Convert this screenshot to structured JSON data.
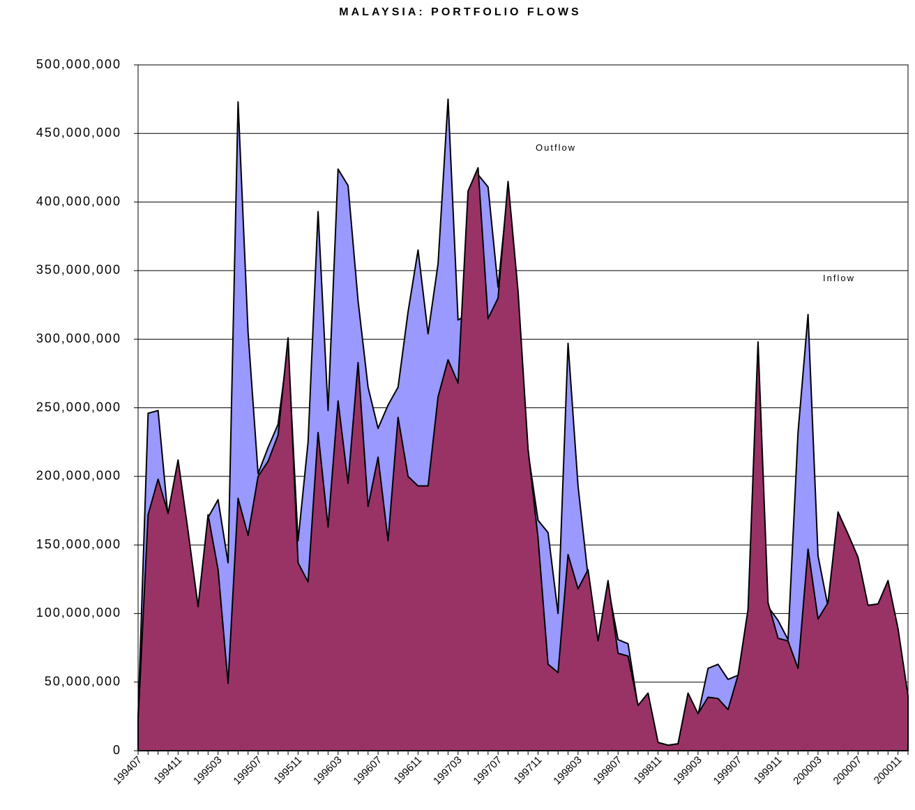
{
  "chart_data": {
    "type": "area",
    "title": "MALAYSIA: PORTFOLIO FLOWS",
    "categories": [
      "199407",
      null,
      null,
      null,
      "199411",
      null,
      null,
      null,
      "199503",
      null,
      null,
      null,
      "199507",
      null,
      null,
      null,
      "199511",
      null,
      null,
      null,
      "199603",
      null,
      null,
      null,
      "199607",
      null,
      null,
      null,
      "199611",
      null,
      null,
      null,
      "199703",
      null,
      null,
      null,
      "199707",
      null,
      null,
      null,
      "199711",
      null,
      null,
      null,
      "199803",
      null,
      null,
      null,
      "199807",
      null,
      null,
      null,
      "199811",
      null,
      null,
      null,
      "199903",
      null,
      null,
      null,
      "199907",
      null,
      null,
      null,
      "199911",
      null,
      null,
      null,
      "200003",
      null,
      null,
      null,
      "200007",
      null,
      null,
      null,
      "200011",
      null
    ],
    "series": [
      {
        "name": "Outflow",
        "color": "#9999ff",
        "values": [
          25000000,
          246000000,
          248000000,
          170000000,
          208000000,
          158000000,
          105000000,
          170000000,
          183000000,
          137000000,
          473000000,
          305000000,
          202000000,
          221000000,
          238000000,
          295000000,
          153000000,
          225000000,
          393000000,
          248000000,
          424000000,
          412000000,
          328000000,
          265000000,
          235000000,
          252000000,
          265000000,
          320000000,
          365000000,
          304000000,
          355000000,
          475000000,
          314000000,
          318000000,
          420000000,
          411000000,
          338000000,
          410000000,
          330000000,
          218000000,
          168000000,
          159000000,
          100000000,
          297000000,
          193000000,
          127000000,
          78000000,
          120000000,
          81000000,
          78000000,
          32000000,
          41000000,
          6000000,
          4000000,
          5000000,
          41000000,
          26000000,
          60000000,
          63000000,
          52000000,
          55000000,
          100000000,
          295000000,
          105000000,
          95000000,
          81000000,
          232000000,
          318000000,
          142000000,
          105000000,
          170000000,
          155000000,
          138000000,
          104000000,
          105000000,
          120000000,
          87000000,
          38000000
        ]
      },
      {
        "name": "Inflow",
        "color": "#993366",
        "values": [
          22000000,
          172000000,
          198000000,
          173000000,
          212000000,
          160000000,
          105000000,
          172000000,
          132000000,
          49000000,
          184000000,
          157000000,
          200000000,
          211000000,
          230000000,
          301000000,
          137000000,
          123000000,
          232000000,
          163000000,
          255000000,
          195000000,
          283000000,
          178000000,
          214000000,
          153000000,
          243000000,
          200000000,
          193000000,
          193000000,
          258000000,
          285000000,
          268000000,
          408000000,
          425000000,
          315000000,
          330000000,
          415000000,
          335000000,
          220000000,
          155000000,
          63000000,
          57000000,
          143000000,
          118000000,
          132000000,
          80000000,
          124000000,
          71000000,
          69000000,
          33000000,
          42000000,
          6000000,
          4000000,
          5000000,
          42000000,
          27000000,
          39000000,
          38000000,
          30000000,
          55000000,
          103000000,
          298000000,
          108000000,
          82000000,
          80000000,
          60000000,
          147000000,
          96000000,
          108000000,
          174000000,
          158000000,
          141000000,
          106000000,
          107000000,
          124000000,
          89000000,
          40000000
        ]
      }
    ],
    "ylim": [
      0,
      500000000
    ],
    "yticks": [
      0,
      {
        "value": 50000000,
        "label": "50,000,000"
      },
      {
        "value": 100000000,
        "label": "100,000,000"
      },
      {
        "value": 150000000,
        "label": "150,000,000"
      },
      {
        "value": 200000000,
        "label": "200,000,000"
      },
      {
        "value": 250000000,
        "label": "250,000,000"
      },
      {
        "value": 300000000,
        "label": "300,000,000"
      },
      {
        "value": 350000000,
        "label": "350,000,000"
      },
      {
        "value": 400000000,
        "label": "400,000,000"
      },
      {
        "value": 450000000,
        "label": "450,000,000"
      },
      {
        "value": 500000000,
        "label": "500,000,000"
      }
    ],
    "grid": true
  }
}
